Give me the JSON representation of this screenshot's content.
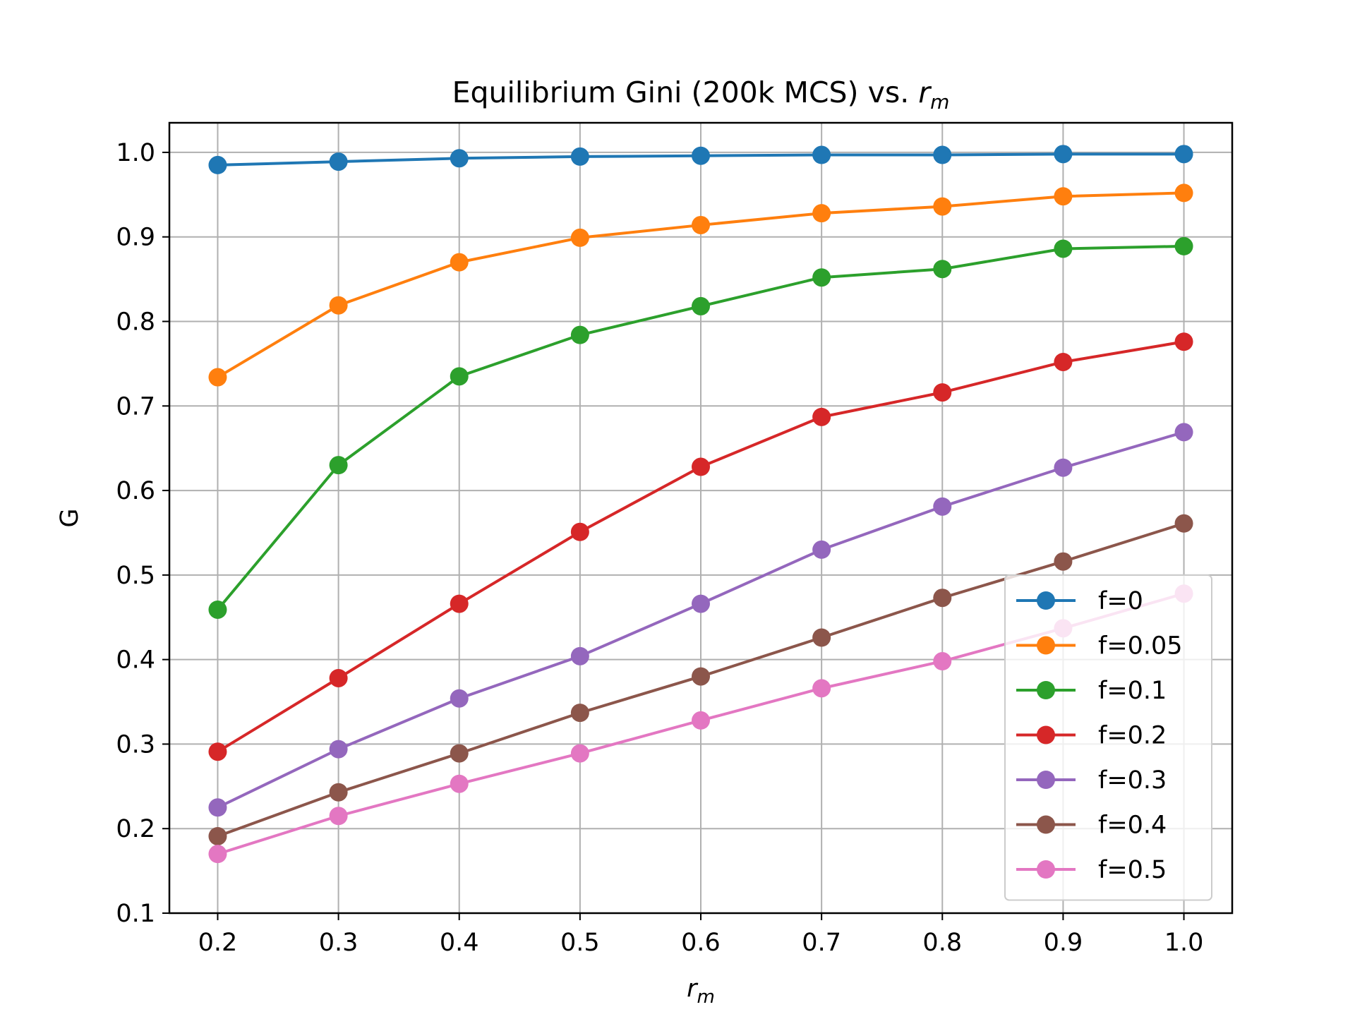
{
  "chart_data": {
    "type": "line",
    "title": "Equilibrium Gini (200k MCS) vs. ",
    "title_math": "r",
    "title_math_sub": "m",
    "xlabel_main": "r",
    "xlabel_sub": "m",
    "ylabel": "G",
    "x": [
      0.2,
      0.3,
      0.4,
      0.5,
      0.6,
      0.7,
      0.8,
      0.9,
      1.0
    ],
    "x_tick_labels": [
      "0.2",
      "0.3",
      "0.4",
      "0.5",
      "0.6",
      "0.7",
      "0.8",
      "0.9",
      "1.0"
    ],
    "y_ticks": [
      0.1,
      0.2,
      0.3,
      0.4,
      0.5,
      0.6,
      0.7,
      0.8,
      0.9,
      1.0
    ],
    "y_tick_labels": [
      "0.1",
      "0.2",
      "0.3",
      "0.4",
      "0.5",
      "0.6",
      "0.7",
      "0.8",
      "0.9",
      "1.0"
    ],
    "xlim": [
      0.16,
      1.04
    ],
    "ylim": [
      0.1,
      1.035
    ],
    "grid": true,
    "legend_position": "lower-right",
    "series": [
      {
        "name": "f=0",
        "color": "#1f77b4",
        "values": [
          0.985,
          0.989,
          0.993,
          0.995,
          0.996,
          0.997,
          0.997,
          0.998,
          0.998
        ]
      },
      {
        "name": "f=0.05",
        "color": "#ff7f0e",
        "values": [
          0.734,
          0.819,
          0.87,
          0.899,
          0.914,
          0.928,
          0.936,
          0.948,
          0.952
        ]
      },
      {
        "name": "f=0.1",
        "color": "#2ca02c",
        "values": [
          0.459,
          0.63,
          0.735,
          0.784,
          0.818,
          0.852,
          0.862,
          0.886,
          0.889
        ]
      },
      {
        "name": "f=0.2",
        "color": "#d62728",
        "values": [
          0.291,
          0.378,
          0.466,
          0.551,
          0.628,
          0.687,
          0.716,
          0.752,
          0.776
        ]
      },
      {
        "name": "f=0.3",
        "color": "#9467bd",
        "values": [
          0.225,
          0.294,
          0.354,
          0.404,
          0.466,
          0.53,
          0.581,
          0.627,
          0.669
        ]
      },
      {
        "name": "f=0.4",
        "color": "#8c564b",
        "values": [
          0.191,
          0.243,
          0.289,
          0.337,
          0.38,
          0.426,
          0.473,
          0.516,
          0.561
        ]
      },
      {
        "name": "f=0.5",
        "color": "#e377c2",
        "values": [
          0.17,
          0.215,
          0.253,
          0.289,
          0.328,
          0.366,
          0.398,
          0.437,
          0.478
        ]
      }
    ]
  }
}
